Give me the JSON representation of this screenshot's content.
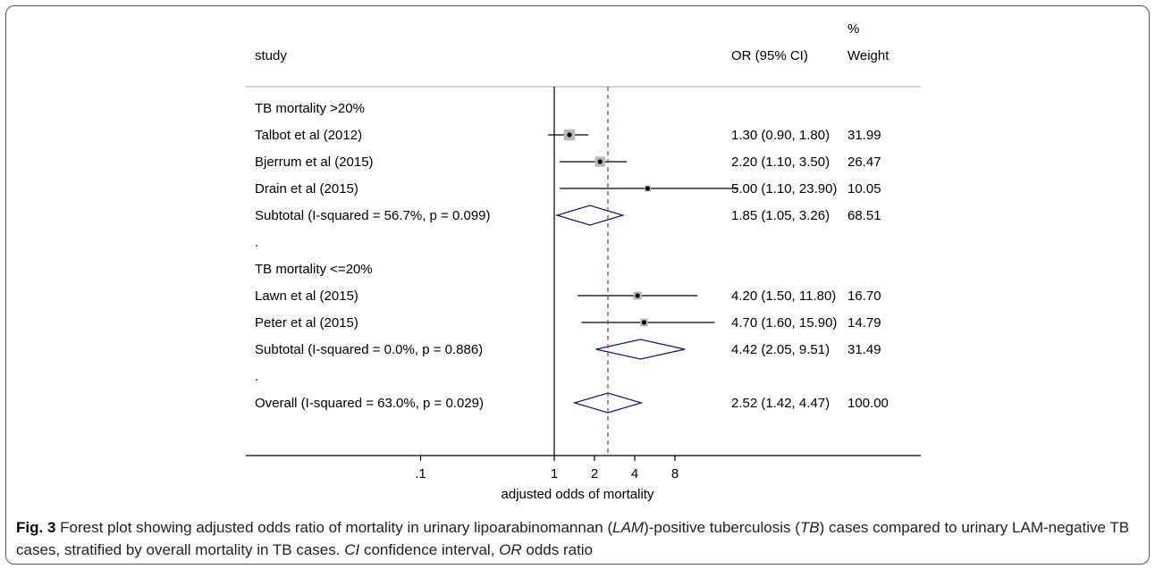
{
  "chart_data": {
    "type": "forest",
    "headers": {
      "study": "study",
      "or_ci": "OR (95% CI)",
      "weight_top": "%",
      "weight": "Weight"
    },
    "xlabel": "adjusted odds of mortality",
    "x_ticks": [
      {
        "value": 0.1,
        "label": ".1"
      },
      {
        "value": 1,
        "label": "1"
      },
      {
        "value": 2,
        "label": "2"
      },
      {
        "value": 4,
        "label": "4"
      },
      {
        "value": 8,
        "label": "8"
      }
    ],
    "x_scale": "log",
    "null_line": 1,
    "overall_line": 2.52,
    "rows": [
      {
        "kind": "group",
        "label": "TB mortality >20%"
      },
      {
        "kind": "study",
        "label": "Talbot et al (2012)",
        "or": 1.3,
        "lo": 0.9,
        "hi": 1.8,
        "ci_text": "1.30 (0.90, 1.80)",
        "weight": "31.99",
        "w": 31.99
      },
      {
        "kind": "study",
        "label": "Bjerrum et al (2015)",
        "or": 2.2,
        "lo": 1.1,
        "hi": 3.5,
        "ci_text": "2.20 (1.10, 3.50)",
        "weight": "26.47",
        "w": 26.47
      },
      {
        "kind": "study",
        "label": "Drain et al (2015)",
        "or": 5.0,
        "lo": 1.1,
        "hi": 23.9,
        "ci_text": "5.00 (1.10, 23.90)",
        "weight": "10.05",
        "w": 10.05
      },
      {
        "kind": "subtotal",
        "label": "Subtotal  (I-squared = 56.7%, p = 0.099)",
        "or": 1.85,
        "lo": 1.05,
        "hi": 3.26,
        "ci_text": "1.85 (1.05, 3.26)",
        "weight": "68.51"
      },
      {
        "kind": "spacer",
        "label": "."
      },
      {
        "kind": "group",
        "label": "TB mortality <=20%"
      },
      {
        "kind": "study",
        "label": "Lawn et al (2015)",
        "or": 4.2,
        "lo": 1.5,
        "hi": 11.8,
        "ci_text": "4.20 (1.50, 11.80)",
        "weight": "16.70",
        "w": 16.7
      },
      {
        "kind": "study",
        "label": "Peter et al (2015)",
        "or": 4.7,
        "lo": 1.6,
        "hi": 15.9,
        "ci_text": "4.70 (1.60, 15.90)",
        "weight": "14.79",
        "w": 14.79
      },
      {
        "kind": "subtotal",
        "label": "Subtotal  (I-squared = 0.0%, p = 0.886)",
        "or": 4.42,
        "lo": 2.05,
        "hi": 9.51,
        "ci_text": "4.42 (2.05, 9.51)",
        "weight": "31.49"
      },
      {
        "kind": "spacer",
        "label": "."
      },
      {
        "kind": "subtotal",
        "label": "Overall  (I-squared = 63.0%, p = 0.029)",
        "or": 2.52,
        "lo": 1.42,
        "hi": 4.47,
        "ci_text": "2.52 (1.42, 4.47)",
        "weight": "100.00"
      }
    ],
    "colors": {
      "diamond": "#1a1a7a",
      "overall_line": "#b03030",
      "box": "#b8b8b8",
      "rule": "#bbbbbb"
    }
  },
  "caption": {
    "fig": "Fig. 3",
    "t1": " Forest plot showing adjusted odds ratio of mortality in urinary lipoarabinomannan (",
    "lam": "LAM",
    "t2": ")-positive tuberculosis (",
    "tb": "TB",
    "t3": ") cases compared to urinary LAM-negative TB cases, stratified by overall mortality in TB cases. ",
    "ci": "CI",
    "t4": " confidence interval, ",
    "or": "OR",
    "t5": " odds ratio"
  }
}
